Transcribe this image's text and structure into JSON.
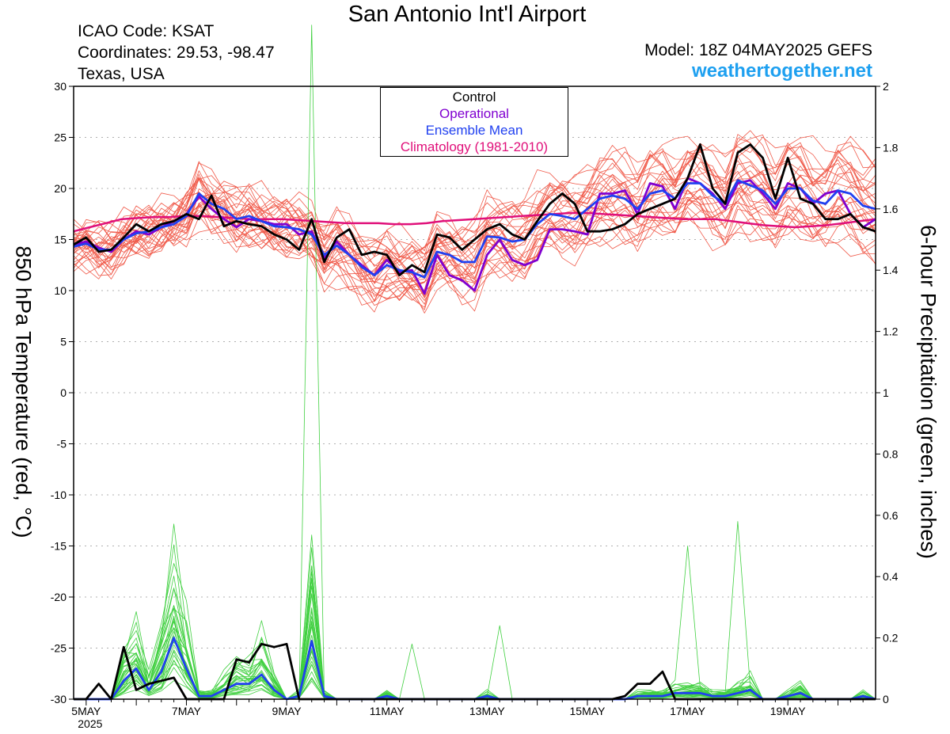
{
  "header": {
    "title": "San Antonio Int'l Airport",
    "icao": "ICAO Code: KSAT",
    "coordinates": "Coordinates: 29.53, -98.47",
    "region": "Texas, USA",
    "model": "Model: 18Z 04MAY2025 GEFS",
    "website": "weathertogether.net"
  },
  "legend": {
    "items": [
      {
        "label": "Control",
        "color": "#000000"
      },
      {
        "label": "Operational",
        "color": "#8000d0"
      },
      {
        "label": "Ensemble Mean",
        "color": "#2040f0"
      },
      {
        "label": "Climatology (1981-2010)",
        "color": "#e0107a"
      }
    ]
  },
  "chart_data": {
    "type": "line",
    "ylabel_left": "850 hPa Temperature (red, °C)",
    "ylabel_right": "6-hour Precipitation (green, inches)",
    "ylim_left": [
      -30,
      30
    ],
    "ylim_right": [
      0,
      2
    ],
    "yticks_left": [
      "30",
      "25",
      "20",
      "15",
      "10",
      "5",
      "0",
      "-5",
      "-10",
      "-15",
      "-20",
      "-25",
      "-30"
    ],
    "yticks_right": [
      "2",
      "1.8",
      "1.6",
      "1.4",
      "1.2",
      "1",
      "0.8",
      "0.6",
      "0.4",
      "0.2",
      "0"
    ],
    "xlim": [
      4.75,
      20.75
    ],
    "xtick_labels": [
      {
        "x": 5,
        "label": "5MAY",
        "sub": "2025"
      },
      {
        "x": 7,
        "label": "7MAY"
      },
      {
        "x": 9,
        "label": "9MAY"
      },
      {
        "x": 11,
        "label": "11MAY"
      },
      {
        "x": 13,
        "label": "13MAY"
      },
      {
        "x": 15,
        "label": "15MAY"
      },
      {
        "x": 17,
        "label": "17MAY"
      },
      {
        "x": 19,
        "label": "19MAY"
      }
    ],
    "grid": true,
    "colors": {
      "control": "#000000",
      "operational": "#8000d0",
      "mean": "#2040f0",
      "climatology": "#e0107a",
      "members_temp": "#f05a4a",
      "members_precip": "#40d040"
    },
    "x_start_day": 4.75,
    "x_step_days": 0.25,
    "series": [
      {
        "name": "Control",
        "temp": [
          14.5,
          15.2,
          13.8,
          14,
          15.2,
          16.5,
          15.8,
          16.5,
          16.8,
          17.5,
          17,
          19.3,
          16.3,
          16.8,
          16.5,
          16.3,
          15.5,
          15,
          14,
          17,
          12.8,
          15.2,
          16,
          13.5,
          13.8,
          13.5,
          11.5,
          12.5,
          11.8,
          15.5,
          15.2,
          14,
          15,
          16,
          16.5,
          15.5,
          15,
          16.8,
          18.5,
          19.5,
          18.5,
          15.8,
          15.8,
          16,
          16.5,
          17.5,
          18,
          18.5,
          19,
          21,
          24.3,
          20,
          18.5,
          23.5,
          24.3,
          23,
          19,
          23,
          19,
          18.5,
          17,
          17,
          17.5,
          16.2,
          15.8
        ],
        "precip": [
          0,
          0,
          0.05,
          0,
          0.17,
          0.03,
          0.05,
          0.06,
          0.07,
          0,
          0,
          0,
          0,
          0.13,
          0.12,
          0.18,
          0.17,
          0.18,
          0,
          0,
          0,
          0,
          0,
          0,
          0,
          0,
          0,
          0,
          0,
          0,
          0,
          0,
          0,
          0,
          0,
          0,
          0,
          0,
          0,
          0,
          0,
          0,
          0,
          0,
          0.01,
          0.05,
          0.05,
          0.09,
          0,
          0,
          0,
          0,
          0,
          0,
          0,
          0,
          0,
          0,
          0,
          0,
          0,
          0,
          0,
          0,
          0
        ]
      },
      {
        "name": "Operational",
        "temp": [
          14.5,
          14.8,
          14.2,
          13.8,
          15,
          15.8,
          15.5,
          16.2,
          16.8,
          17.5,
          19.2,
          18,
          17,
          16.2,
          17,
          16.8,
          16.5,
          16.5,
          15.5,
          15.8,
          13.2,
          14.8,
          13.5,
          12.5,
          11.5,
          13,
          11.8,
          12,
          9.7,
          13.5,
          11.5,
          11,
          10,
          13.5,
          15,
          13,
          12.5,
          13,
          16,
          16,
          15.8,
          15.5,
          19.5,
          19.5,
          19.8,
          17.5,
          20.5,
          20.2,
          18,
          21,
          20.5,
          19.5,
          18,
          20.5,
          20.8,
          19.5,
          18,
          20.5,
          20,
          18.5,
          19.5,
          19.8,
          17.5,
          16.2,
          17
        ]
      },
      {
        "name": "Ensemble Mean",
        "temp": [
          14.3,
          14.6,
          14,
          14,
          15,
          15.6,
          15.8,
          16.2,
          16.5,
          17.3,
          19.5,
          18.5,
          18,
          17,
          17.3,
          16.8,
          16.3,
          16.2,
          16,
          15.5,
          13.5,
          14.4,
          13.5,
          12.3,
          11.5,
          12.5,
          12,
          11.8,
          11.3,
          13.8,
          13.5,
          12.8,
          12.8,
          15.3,
          15.2,
          14.8,
          15,
          16.5,
          17.5,
          17.3,
          17,
          18,
          19,
          19.3,
          19,
          18,
          19.5,
          19.8,
          19,
          20.5,
          20.5,
          19.3,
          18.5,
          20.8,
          20.3,
          19.8,
          18.5,
          20,
          20,
          18.8,
          18.5,
          19.8,
          19.5,
          18.3,
          18
        ],
        "precip": [
          0,
          0,
          0,
          0,
          0.06,
          0.1,
          0.03,
          0.09,
          0.2,
          0.1,
          0.01,
          0.01,
          0.03,
          0.05,
          0.05,
          0.08,
          0.03,
          0,
          0.01,
          0.19,
          0.01,
          0,
          0,
          0,
          0,
          0.01,
          0,
          0,
          0,
          0,
          0,
          0,
          0,
          0.01,
          0,
          0,
          0,
          0,
          0,
          0,
          0,
          0,
          0,
          0,
          0,
          0.01,
          0.01,
          0.01,
          0.02,
          0.02,
          0.02,
          0.01,
          0.01,
          0.02,
          0.03,
          0,
          0,
          0.01,
          0.02,
          0,
          0,
          0,
          0,
          0.01,
          0
        ]
      },
      {
        "name": "Climatology (1981-2010)",
        "temp": [
          15.8,
          16.2,
          16.6,
          17,
          17.1,
          17.2,
          17.2,
          17.3,
          17.3,
          17.2,
          17.1,
          17,
          17,
          17,
          16.9,
          16.8,
          16.7,
          16.6,
          16.6,
          16.6,
          16.5,
          16.5,
          16.6,
          16.8,
          16.9,
          17,
          17.1,
          17.2,
          17.3,
          17.4,
          17.5,
          17.6,
          17.6,
          17.5,
          17.4,
          17.3,
          17.2,
          17.1,
          17,
          17,
          17,
          16.8,
          16.6,
          16.4,
          16.3,
          16.2,
          16.3,
          16.4,
          16.6,
          16.8,
          17
        ]
      },
      {
        "name": "Ensemble Members",
        "temp_offsets": [
          -1.2,
          0.8,
          -2.2,
          1.6,
          -0.6,
          2.4,
          -1.8,
          0.4,
          1.2,
          -2.8,
          2,
          -0.9,
          3,
          -1.5,
          0.6,
          -2.5,
          1.8,
          -0.3,
          2.8,
          -2,
          -1,
          1.4,
          -3.2,
          0.2,
          2.2,
          -1.3,
          1,
          -2.4,
          3.4,
          -0.7
        ],
        "precip_scale": [
          1.2,
          0.8,
          1.5,
          0.5,
          2.1,
          1.0,
          0.3,
          1.8,
          0.9,
          1.4,
          0.6,
          2.5,
          1.1,
          0.7,
          1.6,
          0.4,
          1.3,
          2.0,
          0.9,
          1.7,
          0.5,
          1.2,
          0.8,
          1.9,
          1.0,
          0.6,
          1.4,
          2.2,
          0.7,
          1.1
        ]
      }
    ]
  }
}
